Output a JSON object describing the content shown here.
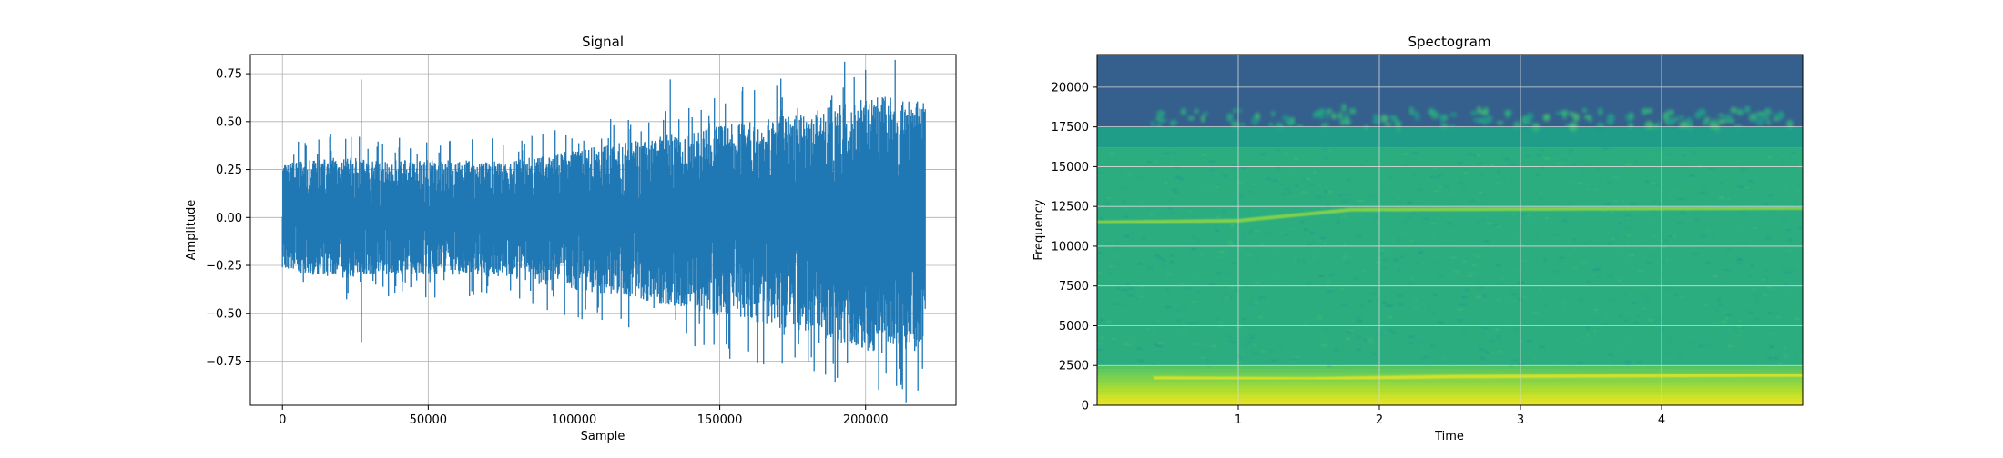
{
  "chart_data": [
    {
      "type": "line",
      "title": "Signal",
      "xlabel": "Sample",
      "ylabel": "Amplitude",
      "xlim": [
        -11000,
        231000
      ],
      "ylim": [
        -0.98,
        0.85
      ],
      "xticks": [
        0,
        50000,
        100000,
        150000,
        200000
      ],
      "xtick_labels": [
        "0",
        "50000",
        "100000",
        "150000",
        "200000"
      ],
      "yticks": [
        -0.75,
        -0.5,
        -0.25,
        0.0,
        0.25,
        0.5,
        0.75
      ],
      "ytick_labels": [
        "−0.75",
        "−0.50",
        "−0.25",
        "0.00",
        "0.25",
        "0.50",
        "0.75"
      ],
      "grid": true,
      "series": [
        {
          "color": "#1f77b4",
          "x_range": [
            0,
            220500
          ],
          "envelope_x": [
            0,
            10000,
            20000,
            30000,
            40000,
            60000,
            80000,
            100000,
            120000,
            140000,
            160000,
            180000,
            200000,
            210000,
            220500
          ],
          "envelope_upper": [
            0.28,
            0.3,
            0.32,
            0.3,
            0.3,
            0.3,
            0.3,
            0.35,
            0.4,
            0.45,
            0.5,
            0.55,
            0.62,
            0.64,
            0.62
          ],
          "envelope_lower": [
            -0.27,
            -0.3,
            -0.32,
            -0.3,
            -0.3,
            -0.3,
            -0.32,
            -0.38,
            -0.42,
            -0.48,
            -0.55,
            -0.6,
            -0.7,
            -0.72,
            -0.7
          ],
          "peaks": [
            [
              27000,
              0.72
            ],
            [
              27100,
              -0.65
            ],
            [
              133000,
              0.72
            ],
            [
              200000,
              0.77
            ],
            [
              204500,
              -0.9
            ],
            [
              219500,
              -0.79
            ]
          ]
        }
      ]
    },
    {
      "type": "heatmap",
      "title": "Spectogram",
      "xlabel": "Time",
      "ylabel": "Frequency",
      "xlim": [
        0,
        5.0
      ],
      "ylim": [
        0,
        22050
      ],
      "xticks": [
        1,
        2,
        3,
        4
      ],
      "xtick_labels": [
        "1",
        "2",
        "3",
        "4"
      ],
      "yticks": [
        0,
        2500,
        5000,
        7500,
        10000,
        12500,
        15000,
        17500,
        20000
      ],
      "ytick_labels": [
        "0",
        "2500",
        "5000",
        "7500",
        "10000",
        "12500",
        "15000",
        "17500",
        "20000"
      ],
      "grid": true,
      "colormap": "viridis",
      "bands": [
        {
          "freq_from": 17500,
          "freq_to": 22050,
          "level": 0.3
        },
        {
          "freq_from": 16200,
          "freq_to": 17500,
          "level": 0.55
        },
        {
          "freq_from": 2500,
          "freq_to": 16200,
          "level": 0.62
        },
        {
          "freq_from": 0,
          "freq_to": 2500,
          "level": 0.85
        }
      ],
      "lines": [
        {
          "points": [
            [
              0,
              11500
            ],
            [
              1.0,
              11600
            ],
            [
              1.8,
              12300
            ],
            [
              5.0,
              12400
            ]
          ],
          "level": 0.82
        },
        {
          "points": [
            [
              0.4,
              1700
            ],
            [
              1.5,
              1650
            ],
            [
              2.5,
              1800
            ],
            [
              5.0,
              1900
            ]
          ],
          "level": 0.95
        }
      ]
    }
  ]
}
